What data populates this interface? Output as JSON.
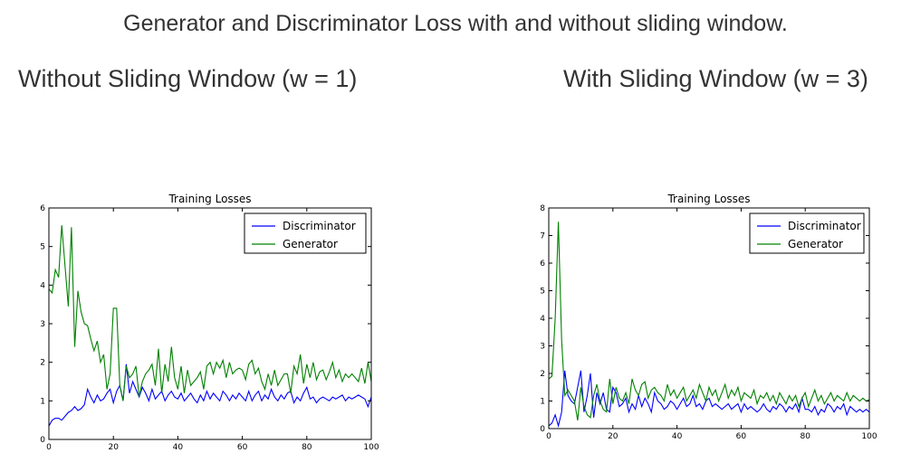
{
  "page": {
    "title": "Generator and Discriminator Loss with and without sliding window.",
    "left_heading": "Without Sliding Window (w = 1)",
    "right_heading": "With Sliding Window (w = 3)"
  },
  "chart_data": [
    {
      "type": "line",
      "title": "Training Losses",
      "xlabel": "",
      "ylabel": "",
      "xlim": [
        0,
        100
      ],
      "ylim": [
        0,
        6
      ],
      "xticks": [
        0,
        20,
        40,
        60,
        80,
        100
      ],
      "yticks": [
        0,
        1,
        2,
        3,
        4,
        5,
        6
      ],
      "grid": false,
      "legend_position": "top-right",
      "series": [
        {
          "name": "Discriminator",
          "color": "#0000ff",
          "values": [
            0.35,
            0.5,
            0.55,
            0.55,
            0.5,
            0.6,
            0.7,
            0.75,
            0.85,
            0.75,
            0.8,
            0.9,
            1.3,
            1.1,
            0.95,
            1.15,
            1.0,
            1.05,
            1.2,
            1.3,
            0.95,
            1.25,
            1.4,
            1.0,
            1.95,
            1.2,
            1.5,
            1.3,
            1.1,
            1.35,
            1.2,
            1.0,
            1.3,
            1.05,
            1.15,
            1.25,
            1.0,
            1.15,
            1.25,
            1.1,
            1.05,
            1.2,
            1.0,
            1.1,
            1.2,
            1.05,
            0.95,
            1.15,
            1.0,
            1.25,
            1.05,
            1.2,
            1.1,
            1.0,
            1.25,
            1.15,
            1.0,
            1.15,
            1.05,
            1.2,
            1.1,
            1.0,
            1.25,
            1.0,
            1.15,
            1.25,
            1.0,
            1.15,
            1.05,
            1.3,
            1.1,
            1.0,
            1.15,
            1.05,
            1.2,
            1.25,
            0.95,
            1.1,
            1.0,
            1.2,
            1.35,
            1.05,
            1.1,
            0.95,
            1.05,
            1.1,
            1.05,
            1.0,
            1.1,
            1.05,
            1.1,
            1.15,
            1.0,
            1.1,
            1.05,
            1.1,
            1.15,
            1.1,
            1.05,
            0.85,
            1.1
          ]
        },
        {
          "name": "Generator",
          "color": "#008000",
          "values": [
            3.9,
            3.8,
            4.4,
            4.2,
            5.55,
            4.5,
            3.45,
            5.5,
            2.4,
            3.85,
            3.3,
            3.0,
            2.95,
            2.6,
            2.3,
            2.55,
            2.0,
            2.2,
            1.3,
            1.7,
            3.4,
            3.4,
            1.4,
            1.0,
            1.9,
            1.6,
            1.7,
            1.9,
            1.1,
            1.5,
            1.7,
            1.8,
            1.95,
            1.4,
            2.35,
            1.2,
            1.95,
            1.5,
            2.4,
            1.6,
            1.3,
            1.9,
            1.2,
            1.8,
            1.4,
            1.5,
            1.6,
            1.75,
            1.3,
            1.9,
            2.0,
            1.7,
            2.0,
            1.85,
            2.05,
            1.6,
            2.0,
            1.7,
            1.8,
            1.85,
            1.8,
            1.55,
            1.95,
            2.05,
            1.7,
            1.85,
            1.5,
            1.3,
            1.7,
            1.4,
            1.8,
            1.4,
            1.55,
            1.7,
            1.7,
            1.2,
            1.9,
            1.7,
            2.2,
            1.45,
            1.95,
            1.6,
            2.0,
            1.55,
            1.75,
            1.8,
            1.55,
            1.75,
            2.0,
            1.6,
            1.8,
            1.5,
            1.7,
            1.6,
            1.7,
            1.6,
            1.5,
            1.85,
            1.45,
            2.0,
            1.5
          ]
        }
      ]
    },
    {
      "type": "line",
      "title": "Training Losses",
      "xlabel": "",
      "ylabel": "",
      "xlim": [
        0,
        100
      ],
      "ylim": [
        0,
        8
      ],
      "xticks": [
        0,
        20,
        40,
        60,
        80,
        100
      ],
      "yticks": [
        0,
        1,
        2,
        3,
        4,
        5,
        6,
        7,
        8
      ],
      "grid": false,
      "legend_position": "top-right",
      "series": [
        {
          "name": "Discriminator",
          "color": "#0000ff",
          "values": [
            0.1,
            0.2,
            0.5,
            0.1,
            0.6,
            2.1,
            1.2,
            1.0,
            0.9,
            1.5,
            2.1,
            0.6,
            1.2,
            2.0,
            0.4,
            1.3,
            0.9,
            1.3,
            0.7,
            0.6,
            1.5,
            1.3,
            0.8,
            0.9,
            1.1,
            0.6,
            0.9,
            0.7,
            1.2,
            0.8,
            1.1,
            0.9,
            0.6,
            1.3,
            1.0,
            0.9,
            0.7,
            0.8,
            1.0,
            0.9,
            0.7,
            0.9,
            1.1,
            0.8,
            0.9,
            1.2,
            0.8,
            0.9,
            0.7,
            1.0,
            1.1,
            0.8,
            0.9,
            0.8,
            0.7,
            0.8,
            0.9,
            0.7,
            0.8,
            0.9,
            0.6,
            0.9,
            0.7,
            0.8,
            0.7,
            0.6,
            0.7,
            0.9,
            0.7,
            0.6,
            0.8,
            0.7,
            0.9,
            0.8,
            0.6,
            0.8,
            0.7,
            0.9,
            0.6,
            1.1,
            0.7,
            0.7,
            0.6,
            0.8,
            0.5,
            0.7,
            0.6,
            0.9,
            0.8,
            0.6,
            0.8,
            0.7,
            0.9,
            0.5,
            0.8,
            0.7,
            0.6,
            0.7,
            0.6,
            0.7,
            0.6
          ]
        },
        {
          "name": "Generator",
          "color": "#008000",
          "values": [
            1.8,
            1.9,
            4.0,
            7.5,
            3.2,
            1.2,
            1.4,
            1.2,
            1.0,
            0.3,
            1.5,
            0.8,
            0.5,
            0.4,
            1.2,
            1.6,
            1.0,
            0.7,
            0.6,
            1.8,
            0.9,
            1.5,
            1.1,
            1.0,
            1.3,
            0.9,
            1.8,
            1.4,
            1.2,
            1.6,
            1.7,
            1.1,
            1.4,
            1.5,
            1.3,
            1.2,
            1.0,
            1.6,
            1.2,
            1.4,
            1.1,
            1.3,
            1.5,
            1.0,
            1.2,
            1.4,
            1.1,
            1.6,
            1.3,
            1.0,
            1.5,
            1.2,
            1.4,
            1.0,
            1.3,
            1.6,
            1.1,
            1.4,
            1.2,
            1.5,
            1.0,
            1.3,
            1.2,
            1.1,
            1.4,
            0.9,
            1.2,
            1.1,
            1.3,
            1.0,
            1.2,
            0.9,
            1.3,
            1.1,
            0.9,
            1.2,
            1.0,
            1.2,
            0.8,
            1.1,
            1.3,
            0.8,
            1.1,
            1.4,
            1.0,
            1.2,
            0.9,
            1.1,
            1.3,
            1.0,
            1.2,
            1.1,
            1.0,
            1.3,
            1.0,
            1.2,
            1.1,
            1.0,
            1.1,
            1.0,
            1.05
          ]
        }
      ]
    }
  ]
}
